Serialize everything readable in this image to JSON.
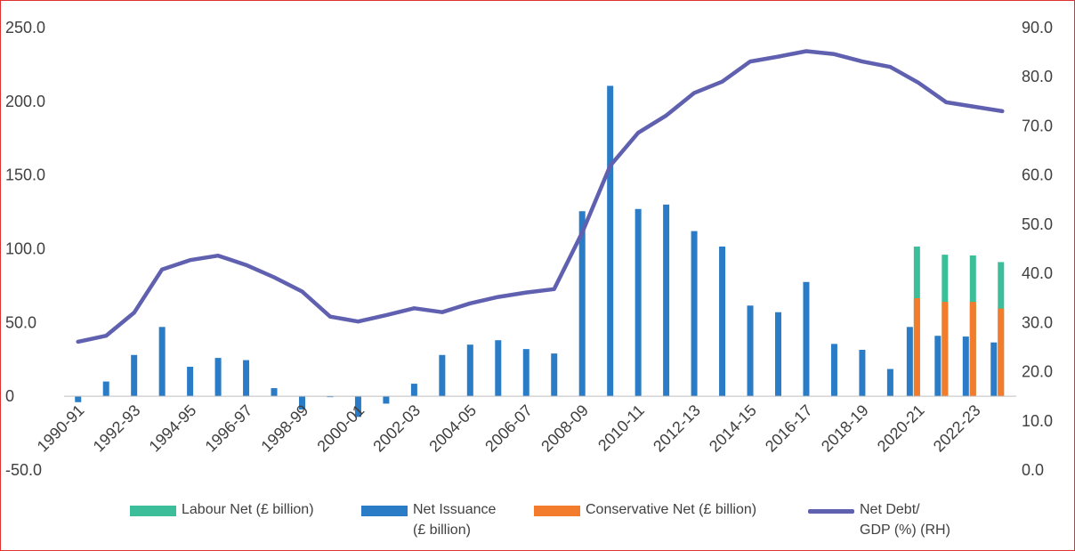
{
  "chart_data": {
    "type": "bar",
    "x": [
      "1990-91",
      "1991-92",
      "1992-93",
      "1993-94",
      "1994-95",
      "1995-96",
      "1996-97",
      "1997-98",
      "1998-99",
      "1999-00",
      "2000-01",
      "2001-02",
      "2002-03",
      "2003-04",
      "2004-05",
      "2005-06",
      "2006-07",
      "2007-08",
      "2008-09",
      "2009-10",
      "2010-11",
      "2011-12",
      "2012-13",
      "2013-14",
      "2014-15",
      "2015-16",
      "2016-17",
      "2017-18",
      "2018-19",
      "2019-20",
      "2020-21",
      "2021-22",
      "2022-23",
      "2023-24"
    ],
    "x_tick_labels": [
      "1990-91",
      "1992-93",
      "1994-95",
      "1996-97",
      "1998-99",
      "2000-01",
      "2002-03",
      "2004-05",
      "2006-07",
      "2008-09",
      "2010-11",
      "2012-13",
      "2014-15",
      "2016-17",
      "2018-19",
      "2020-21",
      "2022-23"
    ],
    "series": [
      {
        "name": "Labour Net (£ billion)",
        "color": "#3dbe9b",
        "axis": "left",
        "values": [
          null,
          null,
          null,
          null,
          null,
          null,
          null,
          null,
          null,
          null,
          null,
          null,
          null,
          null,
          null,
          null,
          null,
          null,
          null,
          null,
          null,
          null,
          null,
          null,
          null,
          null,
          null,
          null,
          null,
          null,
          101.5,
          96.0,
          95.5,
          91.0
        ]
      },
      {
        "name": "Net Issuance (£ billion)",
        "color": "#2a7cc7",
        "axis": "left",
        "values": [
          -4.0,
          10.0,
          28.0,
          47.0,
          20.0,
          26.0,
          24.5,
          5.5,
          -9.0,
          -0.5,
          -14.0,
          -5.0,
          8.5,
          28.0,
          35.0,
          38.0,
          32.0,
          29.0,
          125.5,
          210.5,
          127.0,
          130.0,
          112.0,
          101.5,
          61.5,
          57.0,
          77.5,
          35.5,
          31.5,
          18.5,
          47.0,
          41.0,
          40.5,
          36.5
        ]
      },
      {
        "name": "Conservative Net (£ billion)",
        "color": "#f27c2c",
        "axis": "left",
        "values": [
          null,
          null,
          null,
          null,
          null,
          null,
          null,
          null,
          null,
          null,
          null,
          null,
          null,
          null,
          null,
          null,
          null,
          null,
          null,
          null,
          null,
          null,
          null,
          null,
          null,
          null,
          null,
          null,
          null,
          null,
          66.5,
          64.0,
          64.0,
          59.5
        ]
      },
      {
        "name": "Net Debt/ GDP (%) (RH)",
        "type": "line",
        "color": "#6060b0",
        "axis": "right",
        "values": [
          26.1,
          27.3,
          32.0,
          40.8,
          42.7,
          43.6,
          41.7,
          39.2,
          36.3,
          31.2,
          30.2,
          31.5,
          32.9,
          32.1,
          33.9,
          35.2,
          36.1,
          36.8,
          48.3,
          61.9,
          68.6,
          72.1,
          76.7,
          79.0,
          83.1,
          84.1,
          85.2,
          84.6,
          83.1,
          82.0,
          78.8,
          74.8,
          73.9,
          73.0
        ]
      }
    ],
    "left_axis": {
      "ticks": [
        "250.0",
        "200.0",
        "150.0",
        "100.0",
        "50.0",
        "0",
        "-50.0"
      ],
      "ylim": [
        -50,
        250
      ]
    },
    "right_axis": {
      "ticks": [
        "90.0",
        "80.0",
        "70.0",
        "60.0",
        "50.0",
        "40.0",
        "30.0",
        "20.0",
        "10.0",
        "0.0"
      ],
      "ylim": [
        0,
        90
      ]
    },
    "grid": false,
    "legend_position": "bottom"
  },
  "legend": {
    "labour": "Labour Net (£ billion)",
    "issuance_l1": "Net Issuance",
    "issuance_l2": "(£ billion)",
    "conservative": "Conservative Net (£ billion)",
    "debt_l1": "Net Debt/",
    "debt_l2": "GDP (%) (RH)",
    "colors": {
      "labour": "#3dbe9b",
      "issuance": "#2a7cc7",
      "conservative": "#f27c2c",
      "debt": "#6060b0"
    }
  }
}
